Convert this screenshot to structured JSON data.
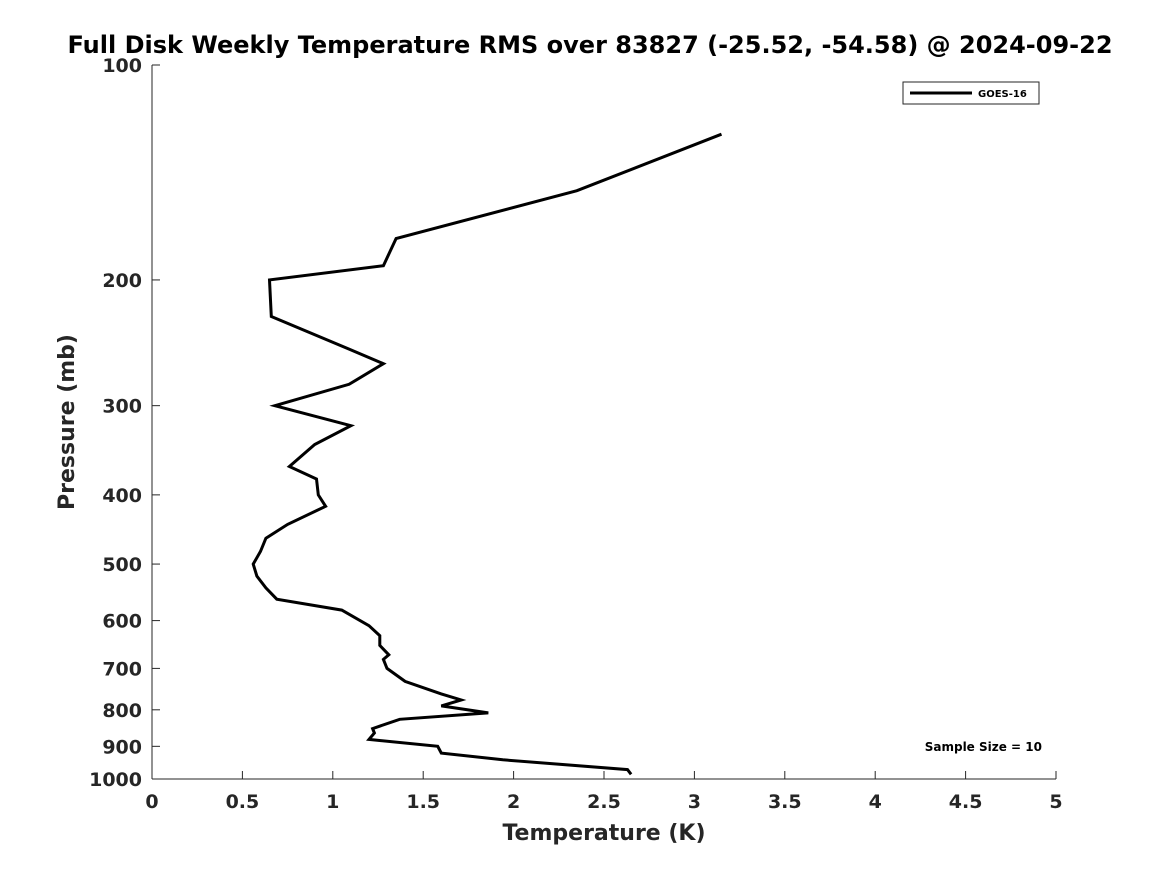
{
  "chart_data": {
    "type": "line",
    "title": "Full Disk Weekly Temperature RMS over 83827 (-25.52, -54.58) @ 2024-09-22",
    "xlabel": "Temperature (K)",
    "ylabel": "Pressure (mb)",
    "xlim": [
      0,
      5
    ],
    "ylim": [
      100,
      1000
    ],
    "y_scale": "log",
    "y_reversed": true,
    "x_ticks": [
      0,
      0.5,
      1,
      1.5,
      2,
      2.5,
      3,
      3.5,
      4,
      4.5,
      5
    ],
    "x_tick_labels": [
      "0",
      "0.5",
      "1",
      "1.5",
      "2",
      "2.5",
      "3",
      "3.5",
      "4",
      "4.5",
      "5"
    ],
    "y_ticks": [
      100,
      200,
      300,
      400,
      500,
      600,
      700,
      800,
      900,
      1000
    ],
    "y_tick_labels": [
      "100",
      "200",
      "300",
      "400",
      "500",
      "600",
      "700",
      "800",
      "900",
      "1000"
    ],
    "grid": false,
    "legend_position": "top-right",
    "series": [
      {
        "name": "GOES-16",
        "color": "#000000",
        "points": [
          [
            3.15,
            125
          ],
          [
            2.35,
            150
          ],
          [
            1.35,
            175
          ],
          [
            1.28,
            191
          ],
          [
            0.65,
            200
          ],
          [
            0.66,
            225
          ],
          [
            1.09,
            250
          ],
          [
            1.28,
            262
          ],
          [
            1.09,
            280
          ],
          [
            0.68,
            300
          ],
          [
            1.1,
            320
          ],
          [
            0.9,
            340
          ],
          [
            0.76,
            365
          ],
          [
            0.91,
            380
          ],
          [
            0.92,
            400
          ],
          [
            0.96,
            415
          ],
          [
            0.75,
            440
          ],
          [
            0.63,
            460
          ],
          [
            0.6,
            480
          ],
          [
            0.56,
            500
          ],
          [
            0.58,
            520
          ],
          [
            0.63,
            540
          ],
          [
            0.69,
            560
          ],
          [
            1.05,
            580
          ],
          [
            1.2,
            610
          ],
          [
            1.26,
            630
          ],
          [
            1.26,
            650
          ],
          [
            1.31,
            670
          ],
          [
            1.28,
            680
          ],
          [
            1.3,
            700
          ],
          [
            1.4,
            730
          ],
          [
            1.6,
            760
          ],
          [
            1.71,
            775
          ],
          [
            1.6,
            790
          ],
          [
            1.86,
            808
          ],
          [
            1.37,
            825
          ],
          [
            1.22,
            850
          ],
          [
            1.23,
            862
          ],
          [
            1.2,
            880
          ],
          [
            1.58,
            900
          ],
          [
            1.6,
            920
          ],
          [
            1.94,
            940
          ],
          [
            2.63,
            970
          ],
          [
            2.65,
            985
          ]
        ]
      }
    ],
    "annotations": [
      {
        "text": "Sample Size = 10",
        "position": "bottom-right"
      }
    ]
  }
}
